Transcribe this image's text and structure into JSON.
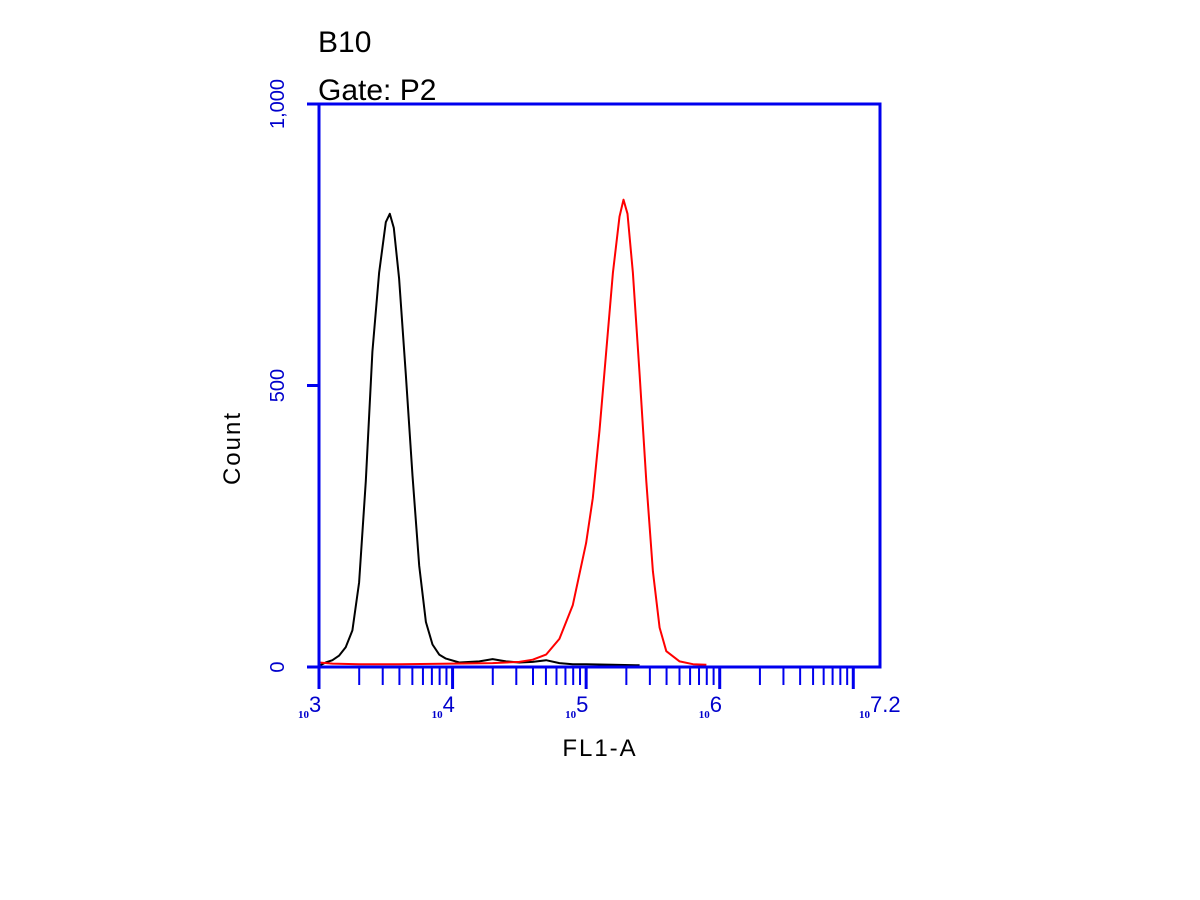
{
  "chart_data": {
    "type": "line",
    "title": "B10",
    "subtitle": "Gate: P2",
    "xlabel": "FL1-A",
    "ylabel": "Count",
    "x_scale": "log10",
    "xlim": [
      3,
      7.2
    ],
    "ylim": [
      0,
      1000
    ],
    "y_ticks": [
      {
        "value": 0,
        "label": "0"
      },
      {
        "value": 500,
        "label": "500"
      },
      {
        "value": 1000,
        "label": "1,000"
      }
    ],
    "x_ticks": [
      {
        "value": 3,
        "base": "10",
        "exp": "3"
      },
      {
        "value": 4,
        "base": "10",
        "exp": "4"
      },
      {
        "value": 5,
        "base": "10",
        "exp": "5"
      },
      {
        "value": 6,
        "base": "10",
        "exp": "6"
      },
      {
        "value": 7.2,
        "base": "10",
        "exp": "7.2"
      }
    ],
    "grid": false,
    "legend": "none",
    "series": [
      {
        "color": "#000000",
        "points": [
          [
            3.0,
            2
          ],
          [
            3.05,
            8
          ],
          [
            3.1,
            12
          ],
          [
            3.15,
            20
          ],
          [
            3.2,
            35
          ],
          [
            3.25,
            65
          ],
          [
            3.3,
            150
          ],
          [
            3.35,
            330
          ],
          [
            3.4,
            560
          ],
          [
            3.45,
            700
          ],
          [
            3.5,
            790
          ],
          [
            3.53,
            805
          ],
          [
            3.56,
            780
          ],
          [
            3.6,
            690
          ],
          [
            3.65,
            520
          ],
          [
            3.7,
            340
          ],
          [
            3.75,
            180
          ],
          [
            3.8,
            80
          ],
          [
            3.85,
            40
          ],
          [
            3.9,
            22
          ],
          [
            3.95,
            15
          ],
          [
            4.05,
            8
          ],
          [
            4.2,
            10
          ],
          [
            4.3,
            14
          ],
          [
            4.4,
            10
          ],
          [
            4.5,
            8
          ],
          [
            4.6,
            9
          ],
          [
            4.7,
            12
          ],
          [
            4.8,
            7
          ],
          [
            4.9,
            5
          ],
          [
            5.0,
            5
          ],
          [
            5.2,
            4
          ],
          [
            5.4,
            3
          ]
        ]
      },
      {
        "color": "#ff0000",
        "points": [
          [
            3.0,
            8
          ],
          [
            3.1,
            6
          ],
          [
            3.3,
            5
          ],
          [
            3.6,
            5
          ],
          [
            4.0,
            6
          ],
          [
            4.3,
            7
          ],
          [
            4.5,
            9
          ],
          [
            4.6,
            13
          ],
          [
            4.7,
            22
          ],
          [
            4.8,
            50
          ],
          [
            4.9,
            110
          ],
          [
            5.0,
            220
          ],
          [
            5.05,
            300
          ],
          [
            5.1,
            420
          ],
          [
            5.15,
            560
          ],
          [
            5.2,
            700
          ],
          [
            5.25,
            800
          ],
          [
            5.28,
            830
          ],
          [
            5.31,
            805
          ],
          [
            5.35,
            700
          ],
          [
            5.4,
            520
          ],
          [
            5.45,
            330
          ],
          [
            5.5,
            170
          ],
          [
            5.55,
            70
          ],
          [
            5.6,
            28
          ],
          [
            5.7,
            10
          ],
          [
            5.8,
            5
          ],
          [
            5.9,
            4
          ]
        ]
      }
    ]
  }
}
